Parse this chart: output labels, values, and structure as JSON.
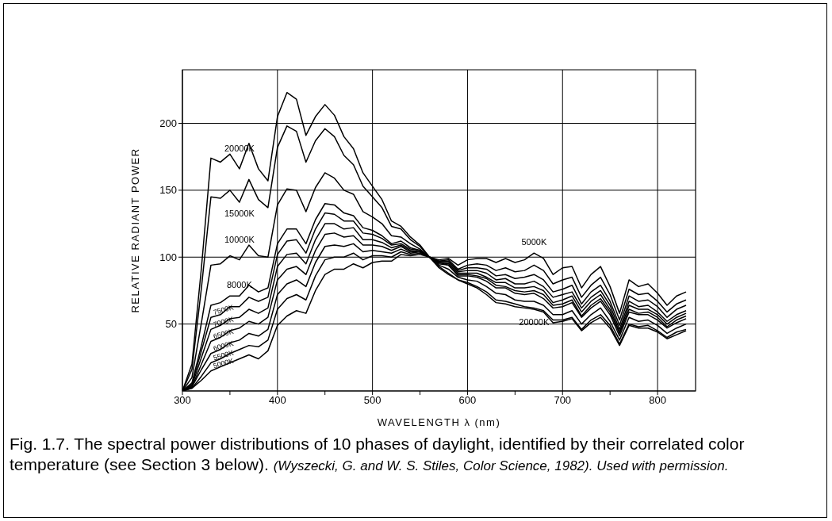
{
  "chart_data": {
    "type": "line",
    "xlabel": "WAVELENGTH λ (nm)",
    "ylabel": "RELATIVE RADIANT POWER",
    "annotations": [
      "Fig. 1.7. The spectral power distributions of 10 phases of daylight, identified by their correlated color temperature (see Section 3 below).",
      "(Wyszecki, G. and W. S. Stiles, Color Science, 1982). Used with permission."
    ],
    "x": [
      300,
      310,
      320,
      330,
      340,
      350,
      360,
      370,
      380,
      390,
      400,
      410,
      420,
      430,
      440,
      450,
      460,
      470,
      480,
      490,
      500,
      510,
      520,
      530,
      540,
      550,
      560,
      570,
      580,
      590,
      600,
      610,
      620,
      630,
      640,
      650,
      660,
      670,
      680,
      690,
      700,
      710,
      720,
      730,
      740,
      750,
      760,
      770,
      780,
      790,
      800,
      810,
      820,
      830
    ],
    "series": [
      {
        "name": "5000K",
        "color": "#000000",
        "values": [
          0,
          2,
          8,
          15,
          18,
          21,
          24,
          27,
          24,
          30,
          49,
          56,
          60,
          58,
          75,
          87,
          91,
          91,
          95,
          92,
          96,
          97,
          97,
          102,
          101,
          102,
          100,
          98,
          99,
          94,
          98,
          99,
          99,
          96,
          99,
          96,
          98,
          103,
          99,
          87,
          92,
          93,
          77,
          87,
          93,
          78,
          58,
          83,
          78,
          80,
          73,
          64,
          71,
          74
        ]
      },
      {
        "name": "5500K",
        "color": "#000000",
        "values": [
          0,
          2,
          11,
          21,
          24,
          28,
          31,
          34,
          33,
          38,
          61,
          69,
          72,
          68,
          86,
          98,
          100,
          100,
          103,
          98,
          101,
          101,
          100,
          104,
          102,
          103,
          100,
          97,
          98,
          91,
          94,
          95,
          94,
          90,
          92,
          89,
          90,
          94,
          90,
          80,
          83,
          85,
          70,
          79,
          85,
          72,
          53,
          76,
          72,
          73,
          67,
          59,
          65,
          68
        ]
      },
      {
        "name": "6000K",
        "color": "#000000",
        "values": [
          0,
          3,
          16,
          28,
          31,
          36,
          38,
          43,
          41,
          46,
          72,
          80,
          83,
          78,
          96,
          108,
          109,
          108,
          110,
          104,
          105,
          104,
          103,
          106,
          103,
          104,
          100,
          97,
          97,
          90,
          92,
          92,
          91,
          86,
          87,
          84,
          85,
          87,
          83,
          74,
          76,
          79,
          65,
          74,
          79,
          67,
          49,
          71,
          67,
          68,
          63,
          55,
          61,
          64
        ]
      },
      {
        "name": "6500K",
        "color": "#000000",
        "values": [
          0,
          3,
          20,
          37,
          40,
          45,
          47,
          52,
          50,
          55,
          83,
          91,
          93,
          87,
          105,
          117,
          118,
          115,
          116,
          109,
          109,
          108,
          105,
          108,
          104,
          104,
          100,
          96,
          96,
          89,
          90,
          90,
          88,
          83,
          84,
          80,
          80,
          82,
          78,
          70,
          72,
          74,
          62,
          70,
          75,
          64,
          46,
          67,
          63,
          64,
          59,
          52,
          57,
          60
        ]
      },
      {
        "name": "7000K",
        "color": "#000000",
        "values": [
          0,
          4,
          25,
          46,
          49,
          54,
          55,
          61,
          58,
          62,
          93,
          102,
          103,
          95,
          113,
          125,
          125,
          121,
          122,
          113,
          113,
          111,
          107,
          109,
          105,
          104,
          100,
          96,
          95,
          88,
          88,
          88,
          85,
          81,
          81,
          77,
          77,
          78,
          75,
          66,
          68,
          71,
          59,
          67,
          72,
          61,
          44,
          64,
          61,
          61,
          57,
          50,
          55,
          58
        ]
      },
      {
        "name": "7500K",
        "color": "#000000",
        "values": [
          0,
          5,
          30,
          55,
          57,
          63,
          63,
          70,
          67,
          70,
          102,
          112,
          113,
          103,
          121,
          133,
          132,
          127,
          127,
          118,
          117,
          114,
          109,
          110,
          106,
          105,
          100,
          96,
          94,
          87,
          87,
          86,
          84,
          79,
          78,
          75,
          74,
          75,
          72,
          64,
          65,
          68,
          56,
          64,
          69,
          59,
          43,
          61,
          58,
          59,
          55,
          48,
          53,
          56
        ]
      },
      {
        "name": "8000K",
        "color": "#000000",
        "values": [
          0,
          6,
          34,
          64,
          66,
          71,
          71,
          79,
          74,
          77,
          110,
          121,
          121,
          110,
          128,
          140,
          139,
          133,
          131,
          122,
          120,
          116,
          110,
          112,
          107,
          105,
          100,
          95,
          94,
          86,
          86,
          85,
          82,
          77,
          77,
          73,
          72,
          73,
          69,
          62,
          63,
          66,
          55,
          62,
          67,
          57,
          41,
          59,
          57,
          57,
          53,
          47,
          51,
          54
        ]
      },
      {
        "name": "10000K",
        "color": "#000000",
        "values": [
          0,
          10,
          51,
          94,
          95,
          101,
          98,
          109,
          101,
          100,
          139,
          151,
          150,
          134,
          152,
          163,
          159,
          150,
          147,
          134,
          130,
          125,
          116,
          115,
          110,
          106,
          100,
          94,
          91,
          85,
          83,
          82,
          78,
          73,
          72,
          68,
          67,
          67,
          64,
          57,
          57,
          60,
          50,
          57,
          62,
          52,
          38,
          55,
          52,
          53,
          49,
          43,
          47,
          50
        ]
      },
      {
        "name": "15000K",
        "color": "#000000",
        "values": [
          0,
          16,
          77,
          145,
          144,
          150,
          141,
          158,
          143,
          137,
          182,
          198,
          194,
          171,
          187,
          196,
          190,
          176,
          169,
          153,
          145,
          137,
          123,
          121,
          113,
          108,
          100,
          93,
          88,
          83,
          81,
          78,
          74,
          68,
          67,
          65,
          63,
          62,
          60,
          53,
          53,
          55,
          46,
          53,
          57,
          49,
          35,
          50,
          48,
          49,
          45,
          40,
          44,
          46
        ]
      },
      {
        "name": "20000K",
        "color": "#000000",
        "values": [
          0,
          20,
          92,
          174,
          171,
          177,
          166,
          185,
          166,
          157,
          205,
          223,
          218,
          191,
          205,
          214,
          206,
          190,
          181,
          163,
          153,
          143,
          127,
          123,
          115,
          109,
          100,
          92,
          87,
          83,
          80,
          77,
          72,
          66,
          65,
          63,
          62,
          61,
          59,
          51,
          52,
          54,
          45,
          51,
          55,
          47,
          34,
          49,
          47,
          47,
          44,
          39,
          42,
          45
        ]
      }
    ],
    "xlim": [
      300,
      840
    ],
    "ylim": [
      0,
      240
    ],
    "xticks": [
      300,
      {
        "value": 350,
        "label": null
      },
      400,
      {
        "value": 450,
        "label": null
      },
      500,
      {
        "value": 550,
        "label": null
      },
      600,
      {
        "value": 650,
        "label": null
      },
      700,
      {
        "value": 750,
        "label": null
      },
      800
    ],
    "yticks": [
      50,
      100,
      150,
      200
    ],
    "grid": true,
    "legend": false,
    "marker": "none",
    "line_style": "solid"
  }
}
